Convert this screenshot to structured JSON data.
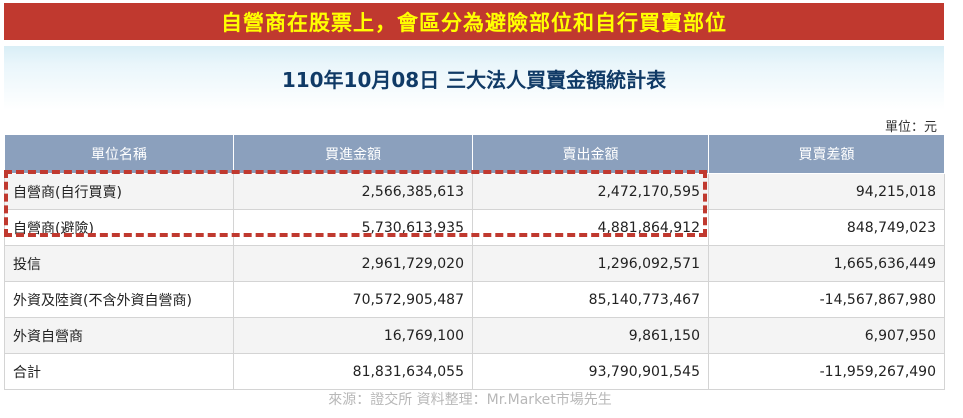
{
  "banner": "自營商在股票上，會區分為避險部位和自行買賣部位",
  "title": "110年10月08日 三大法人買賣金額統計表",
  "unit": "單位：元",
  "headers": [
    "單位名稱",
    "買進金額",
    "賣出金額",
    "買賣差額"
  ],
  "rows": [
    {
      "name": "自營商(自行買賣)",
      "buy": "2,566,385,613",
      "sell": "2,472,170,595",
      "diff": "94,215,018"
    },
    {
      "name": "自營商(避險)",
      "buy": "5,730,613,935",
      "sell": "4,881,864,912",
      "diff": "848,749,023"
    },
    {
      "name": "投信",
      "buy": "2,961,729,020",
      "sell": "1,296,092,571",
      "diff": "1,665,636,449"
    },
    {
      "name": "外資及陸資(不含外資自營商)",
      "buy": "70,572,905,487",
      "sell": "85,140,773,467",
      "diff": "-14,567,867,980"
    },
    {
      "name": "外資自營商",
      "buy": "16,769,100",
      "sell": "9,861,150",
      "diff": "6,907,950"
    },
    {
      "name": "合計",
      "buy": "81,831,634,055",
      "sell": "93,790,901,545",
      "diff": "-11,959,267,490"
    }
  ],
  "source": "來源：證交所  資料整理：Mr.Market市場先生",
  "colors": {
    "banner_bg": "#c0392f",
    "banner_text": "#ffff00",
    "header_bg": "#8ba0bd",
    "title_text": "#103a66",
    "highlight": "#c0392f"
  }
}
